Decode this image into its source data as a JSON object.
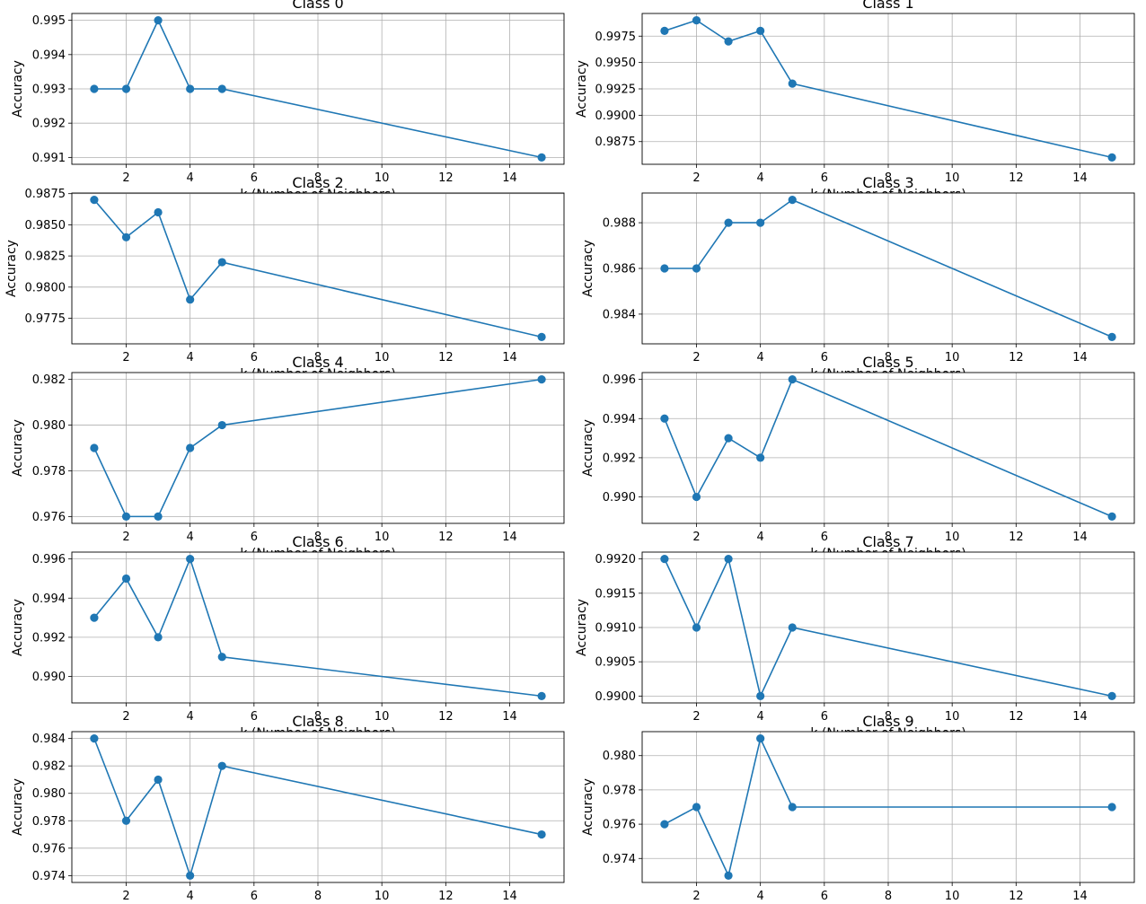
{
  "figure": {
    "line_color": "#1f77b4",
    "grid_color": "#b0b0b0",
    "axis_color": "#000000"
  },
  "chart_data": [
    {
      "type": "line",
      "title": "Class 0",
      "xlabel": "k (Number of Neighbors)",
      "ylabel": "Accuracy",
      "grid": true,
      "marker": "circle",
      "x": [
        1,
        2,
        3,
        4,
        5,
        15
      ],
      "y": [
        0.993,
        0.993,
        0.995,
        0.993,
        0.993,
        0.991
      ],
      "xticks": [
        2,
        4,
        6,
        8,
        10,
        12,
        14
      ],
      "xlim": [
        0.3,
        15.7
      ],
      "yticks": [
        0.991,
        0.992,
        0.993,
        0.994,
        0.995
      ],
      "ytick_labels": [
        "0.991",
        "0.992",
        "0.993",
        "0.994",
        "0.995"
      ],
      "ylim": [
        0.9908,
        0.9952
      ]
    },
    {
      "type": "line",
      "title": "Class 1",
      "xlabel": "k (Number of Neighbors)",
      "ylabel": "Accuracy",
      "grid": true,
      "marker": "circle",
      "x": [
        1,
        2,
        3,
        4,
        5,
        15
      ],
      "y": [
        0.998,
        0.999,
        0.997,
        0.998,
        0.993,
        0.986
      ],
      "xticks": [
        2,
        4,
        6,
        8,
        10,
        12,
        14
      ],
      "xlim": [
        0.3,
        15.7
      ],
      "yticks": [
        0.9875,
        0.99,
        0.9925,
        0.995,
        0.9975
      ],
      "ytick_labels": [
        "0.9875",
        "0.9900",
        "0.9925",
        "0.9950",
        "0.9975"
      ],
      "ylim": [
        0.98535,
        0.99965
      ]
    },
    {
      "type": "line",
      "title": "Class 2",
      "xlabel": "k (Number of Neighbors)",
      "ylabel": "Accuracy",
      "grid": true,
      "marker": "circle",
      "x": [
        1,
        2,
        3,
        4,
        5,
        15
      ],
      "y": [
        0.987,
        0.984,
        0.986,
        0.979,
        0.982,
        0.976
      ],
      "xticks": [
        2,
        4,
        6,
        8,
        10,
        12,
        14
      ],
      "xlim": [
        0.3,
        15.7
      ],
      "yticks": [
        0.9775,
        0.98,
        0.9825,
        0.985,
        0.9875
      ],
      "ytick_labels": [
        "0.9775",
        "0.9800",
        "0.9825",
        "0.9850",
        "0.9875"
      ],
      "ylim": [
        0.97545,
        0.98755
      ]
    },
    {
      "type": "line",
      "title": "Class 3",
      "xlabel": "k (Number of Neighbors)",
      "ylabel": "Accuracy",
      "grid": true,
      "marker": "circle",
      "x": [
        1,
        2,
        3,
        4,
        5,
        15
      ],
      "y": [
        0.986,
        0.986,
        0.988,
        0.988,
        0.989,
        0.983
      ],
      "xticks": [
        2,
        4,
        6,
        8,
        10,
        12,
        14
      ],
      "xlim": [
        0.3,
        15.7
      ],
      "yticks": [
        0.984,
        0.986,
        0.988
      ],
      "ytick_labels": [
        "0.984",
        "0.986",
        "0.988"
      ],
      "ylim": [
        0.9827,
        0.9893
      ]
    },
    {
      "type": "line",
      "title": "Class 4",
      "xlabel": "k (Number of Neighbors)",
      "ylabel": "Accuracy",
      "grid": true,
      "marker": "circle",
      "x": [
        1,
        2,
        3,
        4,
        5,
        15
      ],
      "y": [
        0.979,
        0.976,
        0.976,
        0.979,
        0.98,
        0.982
      ],
      "xticks": [
        2,
        4,
        6,
        8,
        10,
        12,
        14
      ],
      "xlim": [
        0.3,
        15.7
      ],
      "yticks": [
        0.976,
        0.978,
        0.98,
        0.982
      ],
      "ytick_labels": [
        "0.976",
        "0.978",
        "0.980",
        "0.982"
      ],
      "ylim": [
        0.9757,
        0.9823
      ]
    },
    {
      "type": "line",
      "title": "Class 5",
      "xlabel": "k (Number of Neighbors)",
      "ylabel": "Accuracy",
      "grid": true,
      "marker": "circle",
      "x": [
        1,
        2,
        3,
        4,
        5,
        15
      ],
      "y": [
        0.994,
        0.99,
        0.993,
        0.992,
        0.996,
        0.989
      ],
      "xticks": [
        2,
        4,
        6,
        8,
        10,
        12,
        14
      ],
      "xlim": [
        0.3,
        15.7
      ],
      "yticks": [
        0.99,
        0.992,
        0.994,
        0.996
      ],
      "ytick_labels": [
        "0.990",
        "0.992",
        "0.994",
        "0.996"
      ],
      "ylim": [
        0.98865,
        0.99635
      ]
    },
    {
      "type": "line",
      "title": "Class 6",
      "xlabel": "k (Number of Neighbors)",
      "ylabel": "Accuracy",
      "grid": true,
      "marker": "circle",
      "x": [
        1,
        2,
        3,
        4,
        5,
        15
      ],
      "y": [
        0.993,
        0.995,
        0.992,
        0.996,
        0.991,
        0.989
      ],
      "xticks": [
        2,
        4,
        6,
        8,
        10,
        12,
        14
      ],
      "xlim": [
        0.3,
        15.7
      ],
      "yticks": [
        0.99,
        0.992,
        0.994,
        0.996
      ],
      "ytick_labels": [
        "0.990",
        "0.992",
        "0.994",
        "0.996"
      ],
      "ylim": [
        0.98865,
        0.99635
      ]
    },
    {
      "type": "line",
      "title": "Class 7",
      "xlabel": "k (Number of Neighbors)",
      "ylabel": "Accuracy",
      "grid": true,
      "marker": "circle",
      "x": [
        1,
        2,
        3,
        4,
        5,
        15
      ],
      "y": [
        0.992,
        0.991,
        0.992,
        0.99,
        0.991,
        0.99
      ],
      "xticks": [
        2,
        4,
        6,
        8,
        10,
        12,
        14
      ],
      "xlim": [
        0.3,
        15.7
      ],
      "yticks": [
        0.99,
        0.9905,
        0.991,
        0.9915,
        0.992
      ],
      "ytick_labels": [
        "0.9900",
        "0.9905",
        "0.9910",
        "0.9915",
        "0.9920"
      ],
      "ylim": [
        0.9899,
        0.9921
      ]
    },
    {
      "type": "line",
      "title": "Class 8",
      "xlabel": "k (Number of Neighbors)",
      "ylabel": "Accuracy",
      "grid": true,
      "marker": "circle",
      "x": [
        1,
        2,
        3,
        4,
        5,
        15
      ],
      "y": [
        0.984,
        0.978,
        0.981,
        0.974,
        0.982,
        0.977
      ],
      "xticks": [
        2,
        4,
        6,
        8,
        10,
        12,
        14
      ],
      "xlim": [
        0.3,
        15.7
      ],
      "yticks": [
        0.974,
        0.976,
        0.978,
        0.98,
        0.982,
        0.984
      ],
      "ytick_labels": [
        "0.974",
        "0.976",
        "0.978",
        "0.980",
        "0.982",
        "0.984"
      ],
      "ylim": [
        0.9735,
        0.9845
      ]
    },
    {
      "type": "line",
      "title": "Class 9",
      "xlabel": "",
      "ylabel": "Accuracy",
      "grid": true,
      "marker": "circle",
      "x": [
        1,
        2,
        3,
        4,
        5,
        15
      ],
      "y": [
        0.976,
        0.977,
        0.973,
        0.981,
        0.977,
        0.977
      ],
      "xticks": [
        2,
        4,
        6,
        8,
        10,
        12,
        14
      ],
      "xlim": [
        0.3,
        15.7
      ],
      "yticks": [
        0.974,
        0.976,
        0.978,
        0.98
      ],
      "ytick_labels": [
        "0.974",
        "0.976",
        "0.978",
        "0.980"
      ],
      "ylim": [
        0.9726,
        0.9814
      ]
    }
  ]
}
